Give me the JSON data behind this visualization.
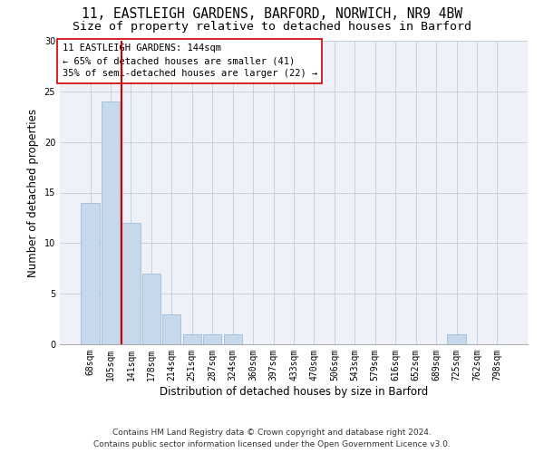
{
  "title_line1": "11, EASTLEIGH GARDENS, BARFORD, NORWICH, NR9 4BW",
  "title_line2": "Size of property relative to detached houses in Barford",
  "xlabel": "Distribution of detached houses by size in Barford",
  "ylabel": "Number of detached properties",
  "bar_labels": [
    "68sqm",
    "105sqm",
    "141sqm",
    "178sqm",
    "214sqm",
    "251sqm",
    "287sqm",
    "324sqm",
    "360sqm",
    "397sqm",
    "433sqm",
    "470sqm",
    "506sqm",
    "543sqm",
    "579sqm",
    "616sqm",
    "652sqm",
    "689sqm",
    "725sqm",
    "762sqm",
    "798sqm"
  ],
  "bar_values": [
    14,
    24,
    12,
    7,
    3,
    1,
    1,
    1,
    0,
    0,
    0,
    0,
    0,
    0,
    0,
    0,
    0,
    0,
    1,
    0,
    0
  ],
  "bar_color": "#c5d8ec",
  "bar_edgecolor": "#a0bcd8",
  "subject_line_index": 2,
  "annotation_title": "11 EASTLEIGH GARDENS: 144sqm",
  "annotation_line2": "← 65% of detached houses are smaller (41)",
  "annotation_line3": "35% of semi-detached houses are larger (22) →",
  "subject_line_color": "#cc0000",
  "annotation_box_edgecolor": "#cc0000",
  "ylim": [
    0,
    30
  ],
  "yticks": [
    0,
    5,
    10,
    15,
    20,
    25,
    30
  ],
  "footer_line1": "Contains HM Land Registry data © Crown copyright and database right 2024.",
  "footer_line2": "Contains public sector information licensed under the Open Government Licence v3.0.",
  "background_color": "#eef2f8",
  "grid_color": "#c8d0e0",
  "title_fontsize": 10.5,
  "subtitle_fontsize": 9.5,
  "axis_label_fontsize": 8.5,
  "tick_fontsize": 7,
  "annotation_fontsize": 7.5,
  "footer_fontsize": 6.5
}
